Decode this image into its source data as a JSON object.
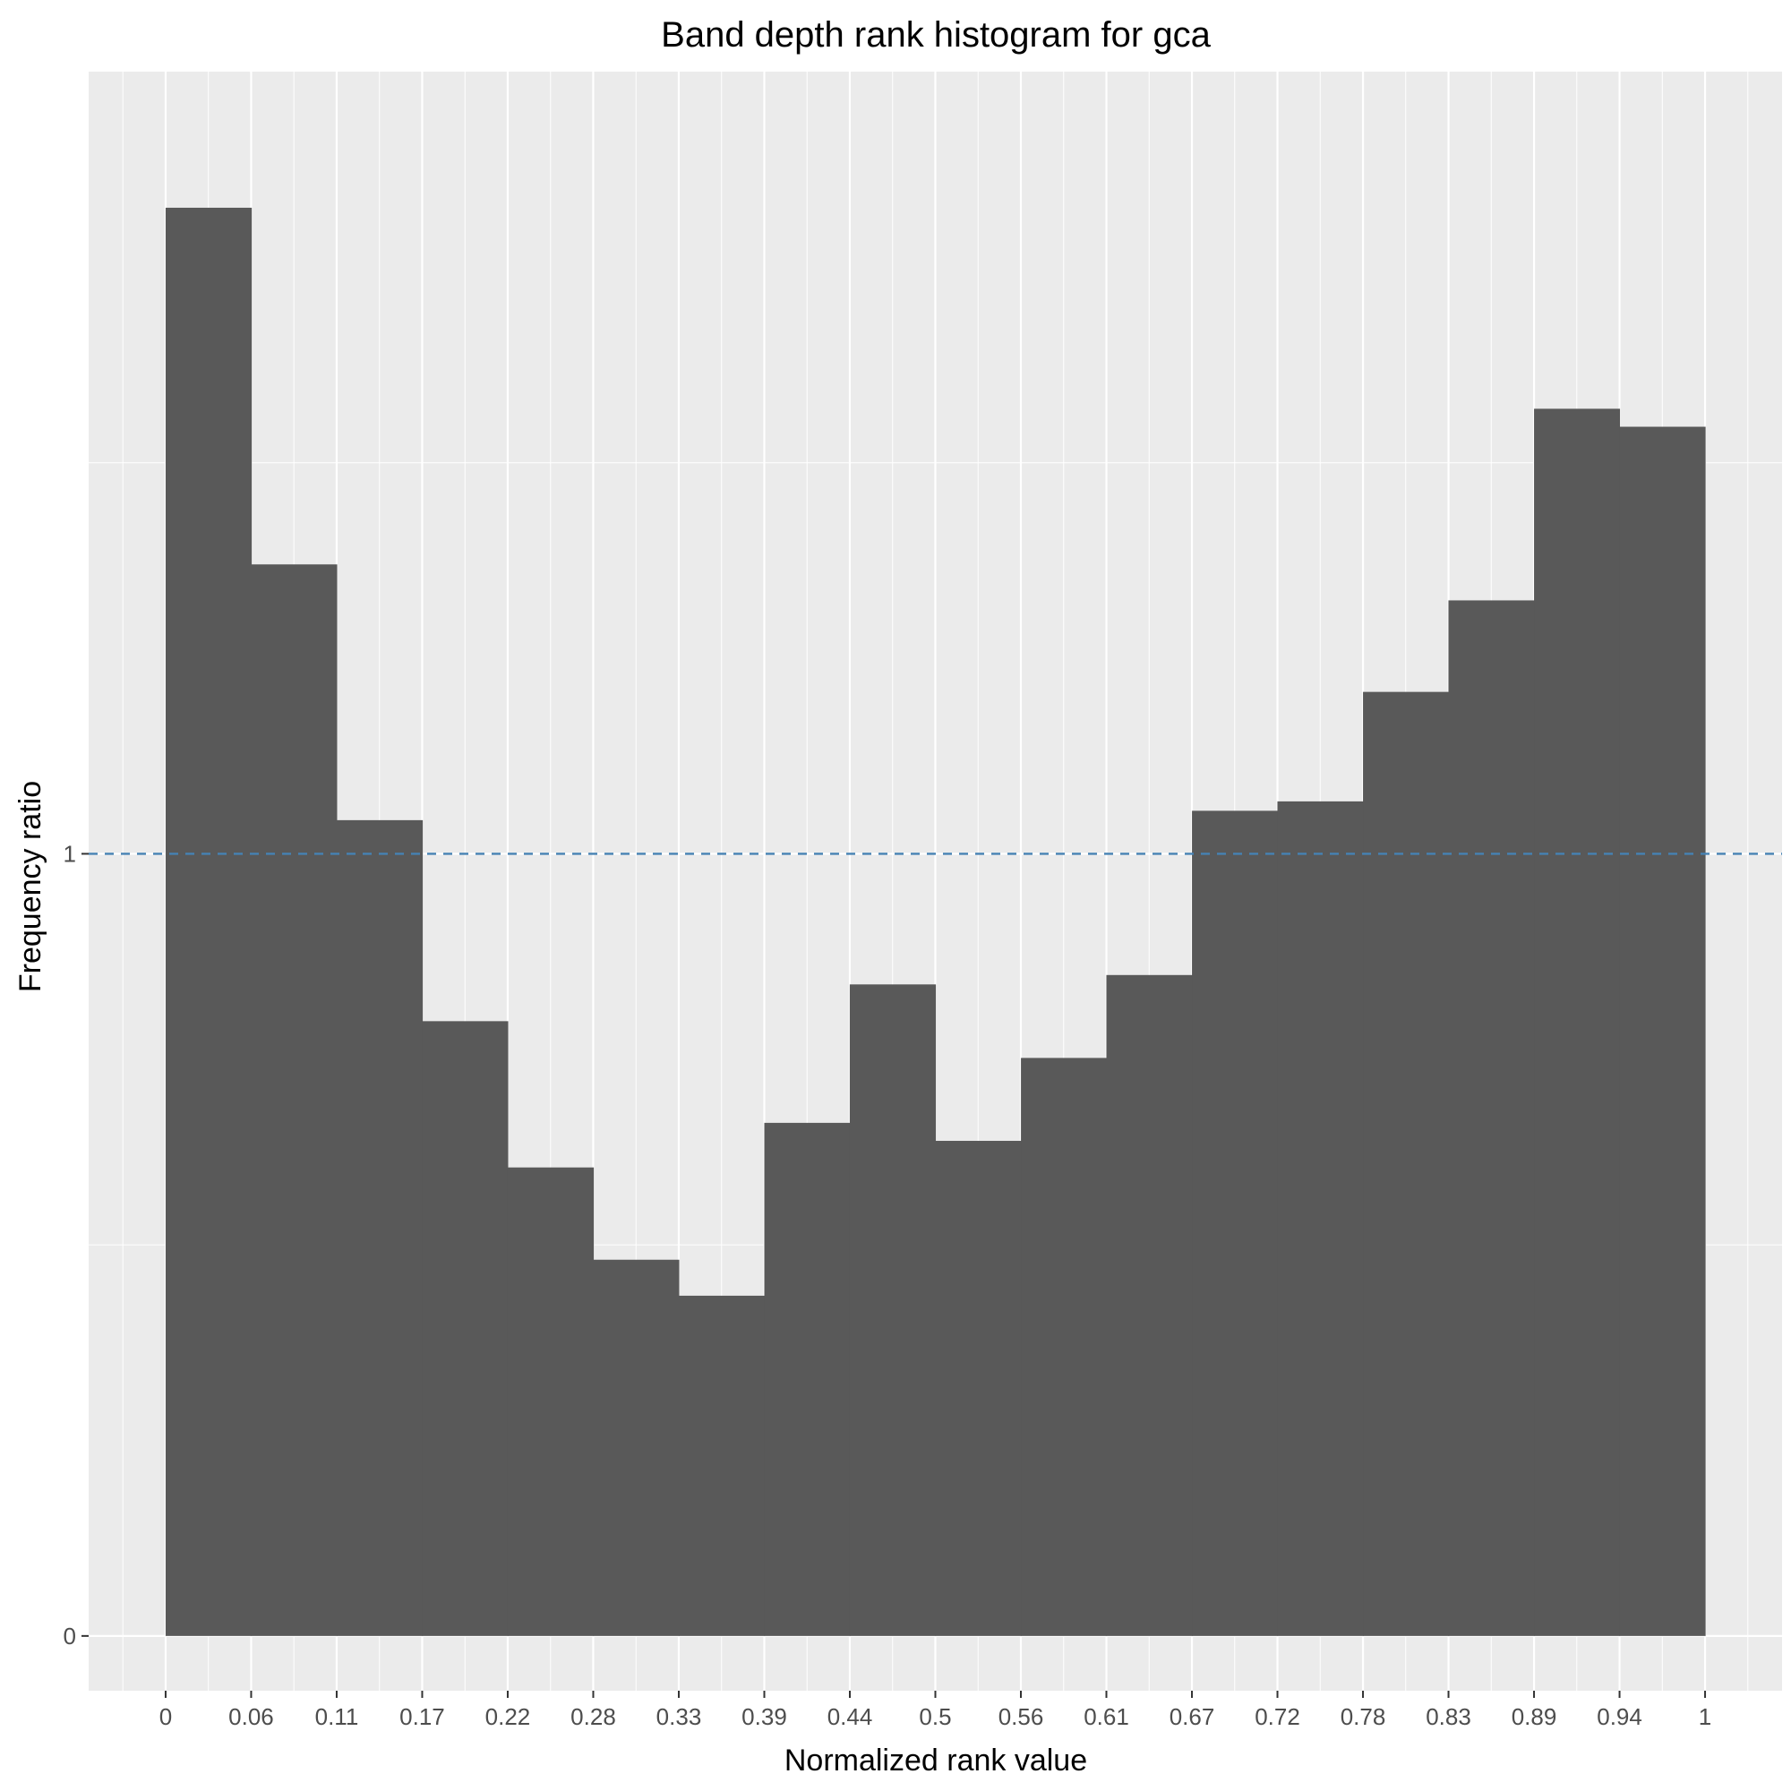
{
  "chart_data": {
    "type": "bar",
    "title": "Band depth rank histogram for gca",
    "xlabel": "Normalized rank value",
    "ylabel": "Frequency ratio",
    "x_ticks": [
      "0",
      "0.06",
      "0.11",
      "0.17",
      "0.22",
      "0.28",
      "0.33",
      "0.39",
      "0.44",
      "0.5",
      "0.56",
      "0.61",
      "0.67",
      "0.72",
      "0.78",
      "0.83",
      "0.89",
      "0.94",
      "1"
    ],
    "y_ticks": [
      "0",
      "1"
    ],
    "bins": [
      {
        "from": 0,
        "to": 0.0556,
        "value": 1.826
      },
      {
        "from": 0.0556,
        "to": 0.1111,
        "value": 1.37
      },
      {
        "from": 0.1111,
        "to": 0.1667,
        "value": 1.043
      },
      {
        "from": 0.1667,
        "to": 0.2222,
        "value": 0.786
      },
      {
        "from": 0.2222,
        "to": 0.2778,
        "value": 0.599
      },
      {
        "from": 0.2778,
        "to": 0.3333,
        "value": 0.481
      },
      {
        "from": 0.3333,
        "to": 0.3889,
        "value": 0.435
      },
      {
        "from": 0.3889,
        "to": 0.4444,
        "value": 0.656
      },
      {
        "from": 0.4444,
        "to": 0.5,
        "value": 0.833
      },
      {
        "from": 0.5,
        "to": 0.5556,
        "value": 0.633
      },
      {
        "from": 0.5556,
        "to": 0.6111,
        "value": 0.739
      },
      {
        "from": 0.6111,
        "to": 0.6667,
        "value": 0.845
      },
      {
        "from": 0.6667,
        "to": 0.7222,
        "value": 1.055
      },
      {
        "from": 0.7222,
        "to": 0.7778,
        "value": 1.067
      },
      {
        "from": 0.7778,
        "to": 0.8333,
        "value": 1.207
      },
      {
        "from": 0.8333,
        "to": 0.8889,
        "value": 1.324
      },
      {
        "from": 0.8889,
        "to": 0.9444,
        "value": 1.569
      },
      {
        "from": 0.9444,
        "to": 1,
        "value": 1.546
      }
    ],
    "reference_line": {
      "y": 1,
      "style": "dashed",
      "color": "#4682B4"
    },
    "xlim": [
      -0.05,
      1.05
    ],
    "ylim": [
      -0.07,
      2.0
    ],
    "grid": true,
    "colors": {
      "bar": "#595959",
      "panel": "#EBEBEB",
      "grid": "#FFFFFF"
    }
  }
}
